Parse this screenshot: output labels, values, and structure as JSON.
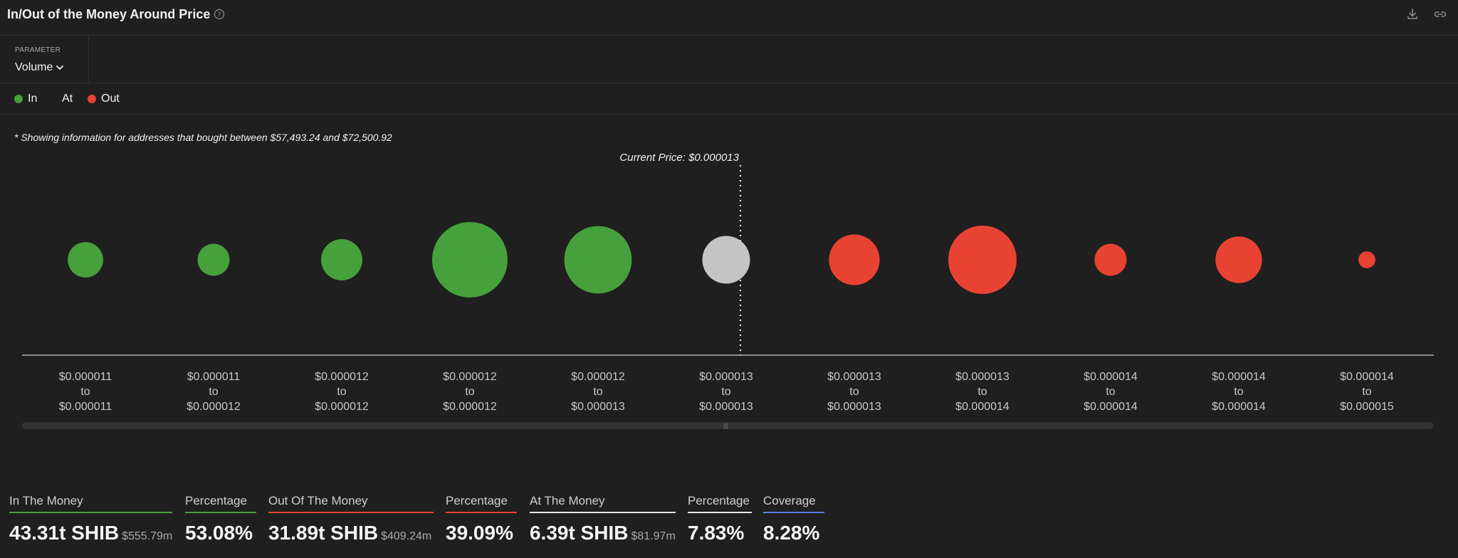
{
  "header": {
    "title": "In/Out of the Money Around Price",
    "help_icon": "question-circle-icon",
    "download_icon": "download-icon",
    "link_icon": "link-icon"
  },
  "parameter": {
    "label": "PARAMETER",
    "value": "Volume",
    "icon": "chevron-down-icon"
  },
  "legend": {
    "items": [
      {
        "label": "In",
        "color": "#46a03b"
      },
      {
        "label": "At",
        "color": null
      },
      {
        "label": "Out",
        "color": "#e84332"
      }
    ]
  },
  "note": "* Showing information for addresses that bought between $57,493.24 and $72,500.92",
  "chart_data": {
    "type": "scatter",
    "title": "In/Out of the Money Around Price",
    "current_price_label": "Current Price: $0.000013",
    "current_price_index": 5,
    "size_metric": "Volume (relative)",
    "ranges": [
      {
        "from": "$0.000011",
        "to": "$0.000011",
        "status": "in",
        "size": 22
      },
      {
        "from": "$0.000011",
        "to": "$0.000012",
        "status": "in",
        "size": 18
      },
      {
        "from": "$0.000012",
        "to": "$0.000012",
        "status": "in",
        "size": 30
      },
      {
        "from": "$0.000012",
        "to": "$0.000012",
        "status": "in",
        "size": 100
      },
      {
        "from": "$0.000012",
        "to": "$0.000013",
        "status": "in",
        "size": 80
      },
      {
        "from": "$0.000013",
        "to": "$0.000013",
        "status": "at",
        "size": 40
      },
      {
        "from": "$0.000013",
        "to": "$0.000013",
        "status": "out",
        "size": 45
      },
      {
        "from": "$0.000013",
        "to": "$0.000014",
        "status": "out",
        "size": 82
      },
      {
        "from": "$0.000014",
        "to": "$0.000014",
        "status": "out",
        "size": 18
      },
      {
        "from": "$0.000014",
        "to": "$0.000014",
        "status": "out",
        "size": 38
      },
      {
        "from": "$0.000014",
        "to": "$0.000015",
        "status": "out",
        "size": 5
      }
    ],
    "to_word": "to",
    "colors": {
      "in": "#46a03b",
      "at": "#c4c4c4",
      "out": "#e84332"
    }
  },
  "stats": {
    "in_the_money": {
      "label": "In The Money",
      "value": "43.31t SHIB",
      "sub": "$555.79m",
      "color": "#46a03b"
    },
    "in_percentage": {
      "label": "Percentage",
      "value": "53.08%",
      "color": "#46a03b"
    },
    "out_of_the_money": {
      "label": "Out Of The Money",
      "value": "31.89t SHIB",
      "sub": "$409.24m",
      "color": "#e84332"
    },
    "out_percentage": {
      "label": "Percentage",
      "value": "39.09%",
      "color": "#e84332"
    },
    "at_the_money": {
      "label": "At The Money",
      "value": "6.39t SHIB",
      "sub": "$81.97m",
      "color": "#e6e6e6"
    },
    "at_percentage": {
      "label": "Percentage",
      "value": "7.83%",
      "color": "#e6e6e6"
    },
    "coverage": {
      "label": "Coverage",
      "value": "8.28%",
      "color": "#5b7fe0"
    }
  }
}
